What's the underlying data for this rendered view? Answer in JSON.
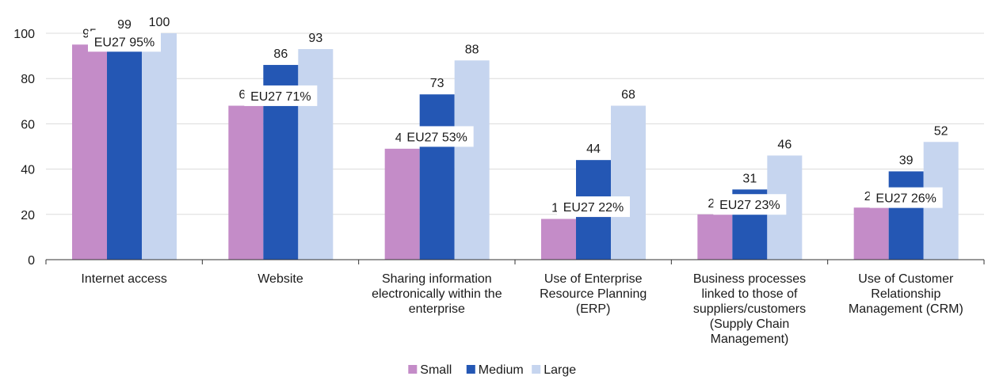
{
  "chart_data": {
    "type": "bar",
    "categories": [
      [
        "Internet access"
      ],
      [
        "Website"
      ],
      [
        "Sharing information",
        "electronically within the",
        "enterprise"
      ],
      [
        "Use of Enterprise",
        "Resource Planning",
        "(ERP)"
      ],
      [
        "Business processes",
        "linked to those of",
        "suppliers/customers",
        "(Supply Chain",
        "Management)"
      ],
      [
        "Use of Customer",
        "Relationship",
        "Management (CRM)"
      ]
    ],
    "series": [
      {
        "name": "Small",
        "color": "#c48cc8",
        "values": [
          95,
          68,
          49,
          18,
          20,
          23
        ]
      },
      {
        "name": "Medium",
        "color": "#2457b4",
        "values": [
          99,
          86,
          73,
          44,
          31,
          39
        ]
      },
      {
        "name": "Large",
        "color": "#c6d5ef",
        "values": [
          100,
          93,
          88,
          68,
          46,
          52
        ]
      }
    ],
    "eu27": {
      "values": [
        95,
        71,
        53,
        22,
        23,
        26
      ],
      "labels": [
        "EU27 95%",
        "EU27 71%",
        "EU27 53%",
        "EU27 22%",
        "EU27 23%",
        "EU27 26%"
      ]
    },
    "ylim": [
      0,
      100
    ],
    "yticks": [
      "0",
      "20",
      "40",
      "60",
      "80",
      "100"
    ],
    "legend_position": "bottom-center",
    "grid": true,
    "grid_color": "#dcdcdc"
  }
}
